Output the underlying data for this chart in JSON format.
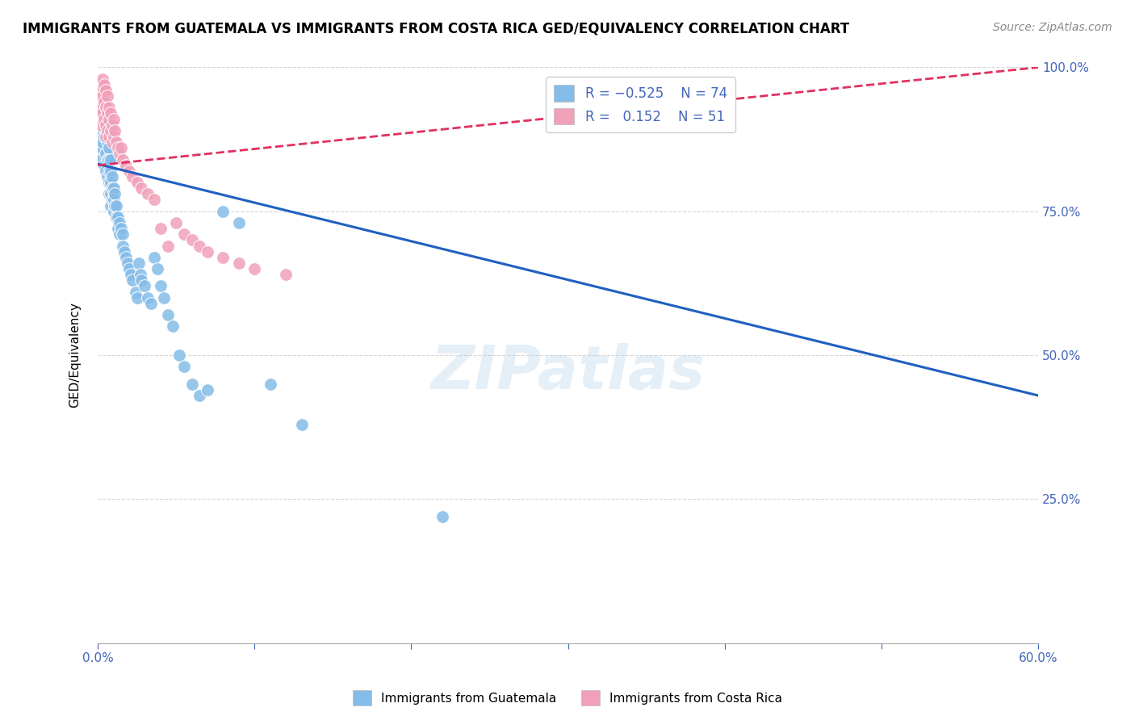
{
  "title": "IMMIGRANTS FROM GUATEMALA VS IMMIGRANTS FROM COSTA RICA GED/EQUIVALENCY CORRELATION CHART",
  "source": "Source: ZipAtlas.com",
  "ylabel_label": "GED/Equivalency",
  "xlabel_label_1": "Immigrants from Guatemala",
  "xlabel_label_2": "Immigrants from Costa Rica",
  "xlim": [
    0.0,
    0.6
  ],
  "ylim": [
    0.0,
    1.0
  ],
  "guatemala_color": "#85bce8",
  "costa_rica_color": "#f0a0b8",
  "line_guatemala_color": "#2060c0",
  "line_costa_rica_color": "#e03060",
  "watermark": "ZIPatlas",
  "guatemala_x": [
    0.001,
    0.002,
    0.002,
    0.003,
    0.003,
    0.003,
    0.004,
    0.004,
    0.004,
    0.005,
    0.005,
    0.005,
    0.005,
    0.006,
    0.006,
    0.006,
    0.006,
    0.007,
    0.007,
    0.007,
    0.007,
    0.007,
    0.008,
    0.008,
    0.008,
    0.008,
    0.008,
    0.009,
    0.009,
    0.009,
    0.01,
    0.01,
    0.01,
    0.011,
    0.011,
    0.012,
    0.012,
    0.013,
    0.013,
    0.014,
    0.014,
    0.015,
    0.016,
    0.016,
    0.017,
    0.018,
    0.019,
    0.02,
    0.021,
    0.022,
    0.024,
    0.025,
    0.026,
    0.027,
    0.028,
    0.03,
    0.032,
    0.034,
    0.036,
    0.038,
    0.04,
    0.042,
    0.045,
    0.048,
    0.052,
    0.055,
    0.06,
    0.065,
    0.07,
    0.08,
    0.09,
    0.11,
    0.13,
    0.22
  ],
  "guatemala_y": [
    0.88,
    0.86,
    0.84,
    0.97,
    0.91,
    0.87,
    0.92,
    0.88,
    0.83,
    0.93,
    0.89,
    0.85,
    0.82,
    0.9,
    0.87,
    0.84,
    0.81,
    0.86,
    0.84,
    0.82,
    0.8,
    0.78,
    0.84,
    0.82,
    0.8,
    0.78,
    0.76,
    0.81,
    0.79,
    0.77,
    0.79,
    0.77,
    0.75,
    0.78,
    0.76,
    0.76,
    0.74,
    0.74,
    0.72,
    0.73,
    0.71,
    0.72,
    0.71,
    0.69,
    0.68,
    0.67,
    0.66,
    0.65,
    0.64,
    0.63,
    0.61,
    0.6,
    0.66,
    0.64,
    0.63,
    0.62,
    0.6,
    0.59,
    0.67,
    0.65,
    0.62,
    0.6,
    0.57,
    0.55,
    0.5,
    0.48,
    0.45,
    0.43,
    0.44,
    0.75,
    0.73,
    0.45,
    0.38,
    0.22
  ],
  "costa_rica_x": [
    0.001,
    0.001,
    0.002,
    0.002,
    0.002,
    0.003,
    0.003,
    0.003,
    0.004,
    0.004,
    0.004,
    0.005,
    0.005,
    0.005,
    0.005,
    0.006,
    0.006,
    0.006,
    0.007,
    0.007,
    0.007,
    0.008,
    0.008,
    0.009,
    0.009,
    0.01,
    0.01,
    0.011,
    0.012,
    0.013,
    0.014,
    0.015,
    0.016,
    0.018,
    0.02,
    0.022,
    0.025,
    0.028,
    0.032,
    0.036,
    0.04,
    0.045,
    0.05,
    0.055,
    0.06,
    0.065,
    0.07,
    0.08,
    0.09,
    0.1,
    0.12
  ],
  "costa_rica_y": [
    0.97,
    0.94,
    0.96,
    0.93,
    0.9,
    0.98,
    0.95,
    0.92,
    0.97,
    0.94,
    0.91,
    0.96,
    0.93,
    0.9,
    0.88,
    0.95,
    0.92,
    0.89,
    0.93,
    0.91,
    0.88,
    0.92,
    0.89,
    0.9,
    0.87,
    0.91,
    0.88,
    0.89,
    0.87,
    0.86,
    0.85,
    0.86,
    0.84,
    0.83,
    0.82,
    0.81,
    0.8,
    0.79,
    0.78,
    0.77,
    0.72,
    0.69,
    0.73,
    0.71,
    0.7,
    0.69,
    0.68,
    0.67,
    0.66,
    0.65,
    0.64
  ],
  "line_guatemala_x0": 0.0,
  "line_guatemala_y0": 0.832,
  "line_guatemala_x1": 0.6,
  "line_guatemala_y1": 0.43,
  "line_costa_rica_x0": 0.0,
  "line_costa_rica_y0": 0.83,
  "line_costa_rica_x1": 0.6,
  "line_costa_rica_y1": 1.0
}
